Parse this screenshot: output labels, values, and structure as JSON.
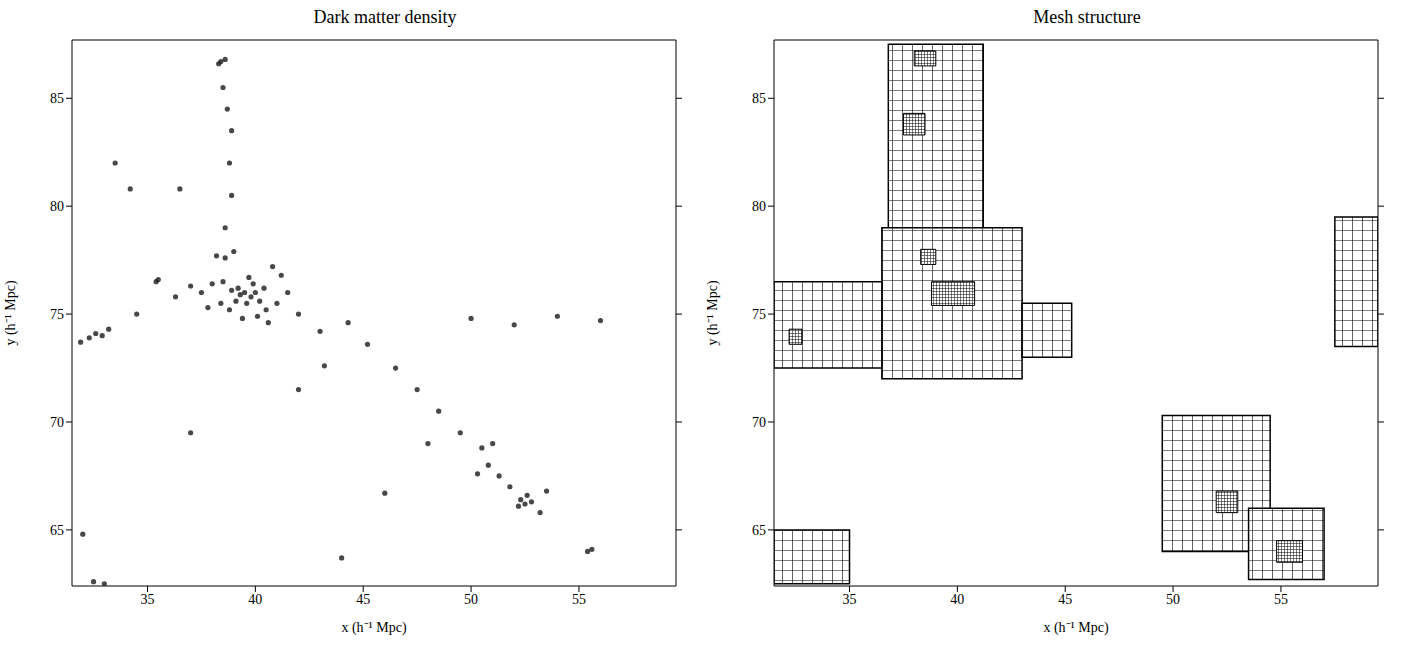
{
  "chart_data": [
    {
      "type": "scatter",
      "title": "Dark matter density",
      "x_label": "x (h⁻¹ Mpc)",
      "y_label": "y (h⁻¹ Mpc)",
      "xlim": [
        31.5,
        59.5
      ],
      "ylim": [
        62.4,
        87.7
      ],
      "xticks": [
        35,
        40,
        45,
        50,
        55
      ],
      "yticks": [
        65,
        70,
        75,
        80,
        85
      ],
      "grid": false,
      "color": "#1a1a1a",
      "x": [
        39.5,
        39.8,
        39.2,
        40,
        39.6,
        39.3,
        40.2,
        39.9,
        38.9,
        40.4,
        39.1,
        39.7,
        40.1,
        40.5,
        38.5,
        38.2,
        38.6,
        39.0,
        38.0,
        37.5,
        37.0,
        41.0,
        41.5,
        40.6,
        39.4,
        38.8,
        38.4,
        37.8,
        41.2,
        40.8,
        38.4,
        38.6,
        38.3,
        38.5,
        38.7,
        38.9,
        38.8,
        38.9,
        38.6,
        32.6,
        32.9,
        32.3,
        31.9,
        33.2,
        34.5,
        35.4,
        35.5,
        36.3,
        34.2,
        33.5,
        36.5,
        42,
        43,
        44.3,
        45.2,
        43.2,
        46.5,
        47.5,
        48.5,
        49.5,
        50.5,
        51.0,
        50.8,
        51.3,
        52.3,
        52.5,
        52.6,
        52.2,
        52.8,
        51.8,
        50.3,
        53.2,
        53.5,
        55.4,
        55.6,
        50,
        52,
        54,
        56,
        32,
        32.5,
        33,
        44,
        48,
        46,
        42,
        37
      ],
      "y": [
        76,
        75.8,
        76.2,
        76,
        75.5,
        75.9,
        75.6,
        76.4,
        76.1,
        76.2,
        75.6,
        76.7,
        74.9,
        75.2,
        76.5,
        77.7,
        77.6,
        77.9,
        76.4,
        76.0,
        76.3,
        75.5,
        76.0,
        74.6,
        74.8,
        75.2,
        75.5,
        75.3,
        76.8,
        77.2,
        86.7,
        86.8,
        86.6,
        85.5,
        84.5,
        83.5,
        82.0,
        80.5,
        79.0,
        74.1,
        74.0,
        73.9,
        73.7,
        74.3,
        75.0,
        76.5,
        76.6,
        75.8,
        80.8,
        82.0,
        80.8,
        75,
        74.2,
        74.6,
        73.6,
        72.6,
        72.5,
        71.5,
        70.5,
        69.5,
        68.8,
        69.0,
        68.0,
        67.5,
        66.4,
        66.2,
        66.6,
        66.1,
        66.3,
        67.0,
        67.6,
        65.8,
        66.8,
        64.0,
        64.1,
        74.8,
        74.5,
        74.9,
        74.7,
        64.8,
        62.6,
        62.5,
        63.7,
        69.0,
        66.7,
        71.5,
        69.5
      ]
    },
    {
      "type": "mesh",
      "title": "Mesh structure",
      "x_label": "x (h⁻¹ Mpc)",
      "y_label": "y (h⁻¹ Mpc)",
      "xlim": [
        31.5,
        59.5
      ],
      "ylim": [
        62.4,
        87.7
      ],
      "xticks": [
        35,
        40,
        45,
        50,
        55
      ],
      "yticks": [
        65,
        70,
        75,
        80,
        85
      ],
      "grid": false,
      "color": "#000000",
      "cells": [
        {
          "x": [
            36.8,
            41.2
          ],
          "y": [
            79,
            87.5
          ]
        },
        {
          "x": [
            36.5,
            43
          ],
          "y": [
            72,
            79
          ]
        },
        {
          "x": [
            31.5,
            36.5
          ],
          "y": [
            72.5,
            76.5
          ]
        },
        {
          "x": [
            43,
            45.3
          ],
          "y": [
            73,
            75.5
          ]
        },
        {
          "x": [
            31.5,
            35
          ],
          "y": [
            62.5,
            65
          ]
        },
        {
          "x": [
            49.5,
            54.5
          ],
          "y": [
            64,
            70.3
          ]
        },
        {
          "x": [
            53.5,
            57
          ],
          "y": [
            62.7,
            66
          ]
        },
        {
          "x": [
            57.5,
            59.5
          ],
          "y": [
            73.5,
            79.5
          ]
        }
      ],
      "refined_cells": [
        {
          "x": [
            38.3,
            39
          ],
          "y": [
            77.3,
            78
          ]
        },
        {
          "x": [
            38.8,
            40.8
          ],
          "y": [
            75.4,
            76.5
          ]
        },
        {
          "x": [
            32.2,
            32.8
          ],
          "y": [
            73.6,
            74.3
          ]
        },
        {
          "x": [
            52,
            53
          ],
          "y": [
            65.8,
            66.8
          ]
        },
        {
          "x": [
            38,
            39
          ],
          "y": [
            86.5,
            87.2
          ]
        },
        {
          "x": [
            37.5,
            38.5
          ],
          "y": [
            83.3,
            84.3
          ]
        },
        {
          "x": [
            54.8,
            56
          ],
          "y": [
            63.5,
            64.5
          ]
        }
      ]
    }
  ]
}
